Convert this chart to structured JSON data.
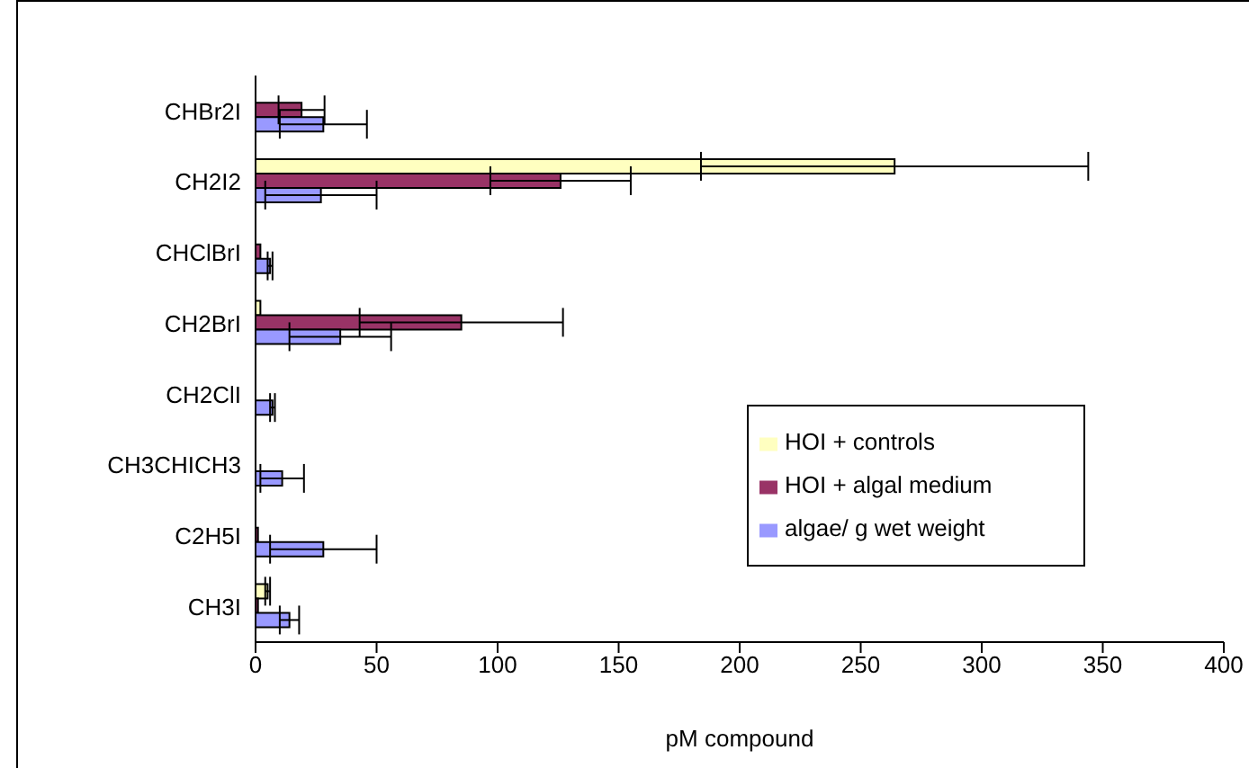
{
  "chart_data": {
    "type": "bar",
    "orientation": "horizontal",
    "xlabel": "pM compound",
    "categories": [
      "CHBr2I",
      "CH2I2",
      "CHClBrI",
      "CH2BrI",
      "CH2ClI",
      "CH3CHICH3",
      "C2H5I",
      "CH3I"
    ],
    "series": [
      {
        "name": "HOI + controls",
        "color": "#ffffc0",
        "values": [
          null,
          264,
          null,
          2,
          null,
          null,
          null,
          5
        ],
        "errors": [
          null,
          80,
          null,
          null,
          null,
          null,
          null,
          1
        ]
      },
      {
        "name": "HOI + algal medium",
        "color": "#993366",
        "values": [
          19,
          126,
          2,
          85,
          null,
          null,
          1,
          1
        ],
        "errors": [
          9.5,
          29,
          null,
          42,
          null,
          null,
          null,
          null
        ]
      },
      {
        "name": "algae/ g wet weight",
        "color": "#9999ff",
        "values": [
          28,
          27,
          6,
          35,
          7,
          11,
          28,
          14
        ],
        "errors": [
          18,
          23,
          1,
          21,
          1,
          9,
          22,
          4
        ]
      }
    ],
    "xlim": [
      0,
      400
    ],
    "xticks": [
      0,
      50,
      100,
      150,
      200,
      250,
      300,
      350,
      400
    ],
    "grid": false,
    "legend": "bottom right"
  }
}
